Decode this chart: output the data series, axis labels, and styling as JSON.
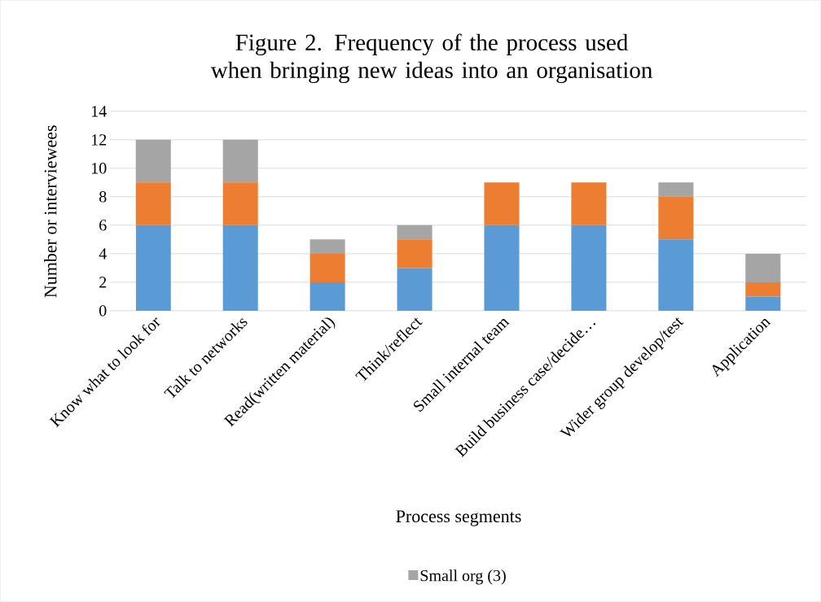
{
  "chart_data": {
    "type": "bar",
    "stacked": true,
    "title": "Figure 2. Frequency of the process used when bringing new ideas into an organisation",
    "xlabel": "Process segments",
    "ylabel": "Number or interviewees",
    "categories": [
      "Know what to look for",
      "Talk to networks",
      "Read(written material)",
      "Think/reflect",
      "Small internal team",
      "Build business case/decide…",
      "Wider group develop/test",
      "Application"
    ],
    "series": [
      {
        "color": "#5b9bd5",
        "values": [
          6,
          6,
          2,
          3,
          6,
          6,
          5,
          1
        ]
      },
      {
        "color": "#ed7d31",
        "values": [
          3,
          3,
          2,
          2,
          3,
          3,
          3,
          1
        ]
      },
      {
        "name": "Small org (3)",
        "color": "#a5a5a5",
        "values": [
          3,
          3,
          1,
          1,
          0,
          0,
          1,
          2
        ]
      }
    ],
    "ylim": [
      0,
      14
    ],
    "yticks": [
      0,
      2,
      4,
      6,
      8,
      10,
      12,
      14
    ],
    "grid": "y",
    "legend": "bottom"
  }
}
